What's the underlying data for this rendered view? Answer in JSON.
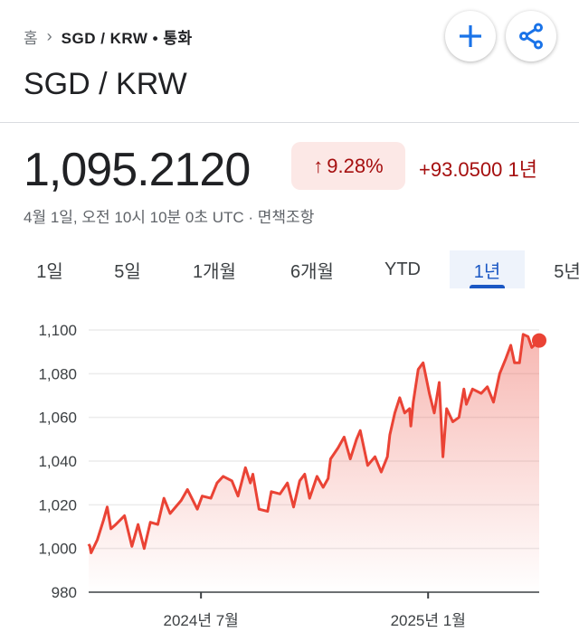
{
  "breadcrumb": {
    "home": "홈",
    "current": "SGD / KRW • 통화"
  },
  "actions": {
    "add_icon": "plus-icon",
    "share_icon": "share-icon"
  },
  "title": "SGD / KRW",
  "quote": {
    "price": "1,095.2120",
    "change_pct": "9.28%",
    "change_arrow": "↑",
    "change_abs": "+93.0500 1년",
    "timestamp": "4월 1일, 오전 10시 10분 0초 UTC · 면책조항"
  },
  "colors": {
    "up": "#a50e0e",
    "badge_bg": "#fce8e6",
    "line": "#ea4335",
    "accent": "#1a73e8"
  },
  "tabs": [
    {
      "label": "1일"
    },
    {
      "label": "5일"
    },
    {
      "label": "1개월"
    },
    {
      "label": "6개월"
    },
    {
      "label": "YTD"
    },
    {
      "label": "1년",
      "selected": true
    },
    {
      "label": "5년"
    }
  ],
  "chart_data": {
    "type": "area",
    "ylim": [
      980,
      1100
    ],
    "xlim": [
      "2024-04-01",
      "2025-04-01"
    ],
    "yticks": [
      "1,100",
      "1,080",
      "1,060",
      "1,040",
      "1,020",
      "1,000",
      "980"
    ],
    "ytick_values": [
      1100,
      1080,
      1060,
      1040,
      1020,
      1000,
      980
    ],
    "xticks": [
      {
        "label": "2024년 7월",
        "date": "2024-07-01"
      },
      {
        "label": "2025년 1월",
        "date": "2025-01-01"
      }
    ],
    "grid": true,
    "x": [
      "2024-04-01",
      "2024-04-02",
      "2024-04-03",
      "2024-04-08",
      "2024-04-13",
      "2024-04-16",
      "2024-04-19",
      "2024-04-23",
      "2024-04-30",
      "2024-05-06",
      "2024-05-11",
      "2024-05-16",
      "2024-05-21",
      "2024-05-27",
      "2024-06-01",
      "2024-06-06",
      "2024-06-15",
      "2024-06-20",
      "2024-06-28",
      "2024-07-02",
      "2024-07-09",
      "2024-07-14",
      "2024-07-19",
      "2024-07-26",
      "2024-07-31",
      "2024-08-06",
      "2024-08-10",
      "2024-08-12",
      "2024-08-17",
      "2024-08-24",
      "2024-08-27",
      "2024-09-03",
      "2024-09-09",
      "2024-09-14",
      "2024-09-19",
      "2024-09-23",
      "2024-09-27",
      "2024-10-03",
      "2024-10-08",
      "2024-10-12",
      "2024-10-14",
      "2024-10-20",
      "2024-10-25",
      "2024-10-30",
      "2024-11-04",
      "2024-11-07",
      "2024-11-13",
      "2024-11-19",
      "2024-11-24",
      "2024-11-29",
      "2024-12-01",
      "2024-12-05",
      "2024-12-09",
      "2024-12-13",
      "2024-12-17",
      "2024-12-18",
      "2024-12-20",
      "2024-12-24",
      "2024-12-28",
      "2025-01-02",
      "2025-01-06",
      "2025-01-10",
      "2025-01-13",
      "2025-01-16",
      "2025-01-21",
      "2025-01-26",
      "2025-01-30",
      "2025-02-01",
      "2025-02-06",
      "2025-02-13",
      "2025-02-18",
      "2025-02-23",
      "2025-02-28",
      "2025-03-05",
      "2025-03-09",
      "2025-03-12",
      "2025-03-16",
      "2025-03-19",
      "2025-03-23",
      "2025-03-26",
      "2025-04-01"
    ],
    "y": [
      1002,
      1001,
      998,
      1004,
      1013,
      1019,
      1009,
      1011,
      1015,
      1001,
      1011,
      1000,
      1012,
      1011,
      1023,
      1016,
      1022,
      1027,
      1018,
      1024,
      1023,
      1030,
      1033,
      1031,
      1024,
      1037,
      1030,
      1034,
      1018,
      1017,
      1026,
      1025,
      1030,
      1019,
      1031,
      1034,
      1023,
      1033,
      1028,
      1032,
      1041,
      1046,
      1051,
      1041,
      1050,
      1054,
      1038,
      1042,
      1035,
      1042,
      1052,
      1062,
      1069,
      1062,
      1064,
      1056,
      1067,
      1082,
      1085,
      1071,
      1062,
      1076,
      1042,
      1064,
      1058,
      1060,
      1073,
      1066,
      1073,
      1071,
      1074,
      1067,
      1080,
      1087,
      1093,
      1085,
      1085,
      1098,
      1097,
      1092,
      1095.212
    ]
  }
}
